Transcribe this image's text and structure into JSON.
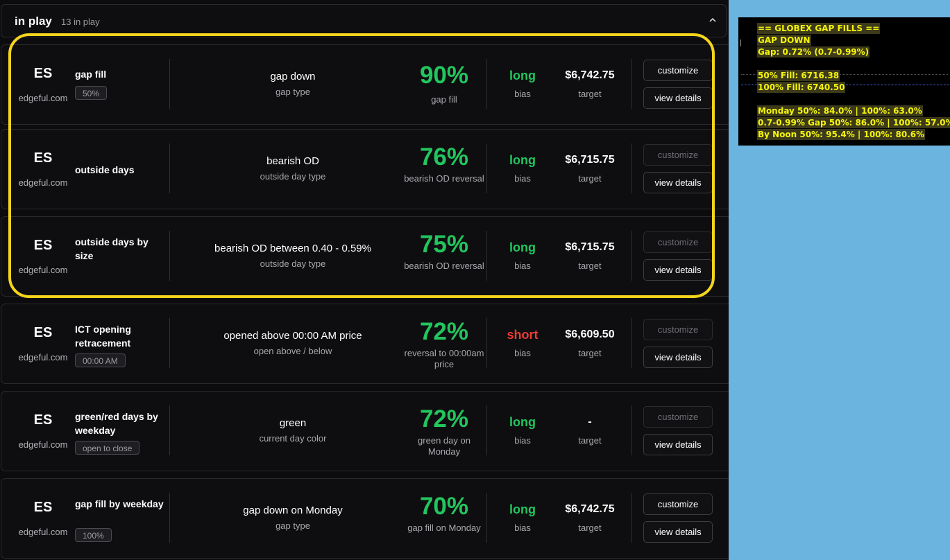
{
  "header": {
    "title": "in play",
    "count": "13 in play",
    "collapse_icon": "chevron-up-icon"
  },
  "cards": [
    {
      "symbol": "ES",
      "site": "edgeful.com",
      "name": "gap fill",
      "badge": "50%",
      "condition": "gap down",
      "condition_label": "gap type",
      "probability": "90%",
      "probability_label": "gap fill",
      "bias": "long",
      "bias_label": "bias",
      "target": "$6,742.75",
      "target_label": "target",
      "customize_label": "customize",
      "customize_enabled": true,
      "details_label": "view details"
    },
    {
      "symbol": "ES",
      "site": "edgeful.com",
      "name": "outside days",
      "badge": "",
      "condition": "bearish OD",
      "condition_label": "outside day type",
      "probability": "76%",
      "probability_label": "bearish OD reversal",
      "bias": "long",
      "bias_label": "bias",
      "target": "$6,715.75",
      "target_label": "target",
      "customize_label": "customize",
      "customize_enabled": false,
      "details_label": "view details"
    },
    {
      "symbol": "ES",
      "site": "edgeful.com",
      "name": "outside days by size",
      "badge": "",
      "condition": "bearish OD between 0.40 - 0.59%",
      "condition_label": "outside day type",
      "probability": "75%",
      "probability_label": "bearish OD reversal",
      "bias": "long",
      "bias_label": "bias",
      "target": "$6,715.75",
      "target_label": "target",
      "customize_label": "customize",
      "customize_enabled": false,
      "details_label": "view details"
    },
    {
      "symbol": "ES",
      "site": "edgeful.com",
      "name": "ICT opening retracement",
      "badge": "00:00 AM",
      "condition": "opened above 00:00 AM price",
      "condition_label": "open above / below",
      "probability": "72%",
      "probability_label": "reversal to 00:00am price",
      "bias": "short",
      "bias_label": "bias",
      "target": "$6,609.50",
      "target_label": "target",
      "customize_label": "customize",
      "customize_enabled": false,
      "details_label": "view details"
    },
    {
      "symbol": "ES",
      "site": "edgeful.com",
      "name": "green/red days by weekday",
      "badge": "open to close",
      "condition": "green",
      "condition_label": "current day color",
      "probability": "72%",
      "probability_label": "green day on Monday",
      "bias": "long",
      "bias_label": "bias",
      "target": "-",
      "target_label": "target",
      "customize_label": "customize",
      "customize_enabled": false,
      "details_label": "view details"
    },
    {
      "symbol": "ES",
      "site": "edgeful.com",
      "name": "gap fill by weekday",
      "badge": "100%",
      "condition": "gap down on Monday",
      "condition_label": "gap type",
      "probability": "70%",
      "probability_label": "gap fill on Monday",
      "bias": "long",
      "bias_label": "bias",
      "target": "$6,742.75",
      "target_label": "target",
      "customize_label": "customize",
      "customize_enabled": true,
      "details_label": "view details"
    }
  ],
  "indicator": {
    "lines": [
      "== GLOBEX GAP FILLS ==",
      "GAP DOWN",
      "Gap: 0.72% (0.7-0.99%)",
      "50% Fill: 6716.38",
      "100% Fill: 6740.50",
      "Monday 50%: 84.0% | 100%: 63.0%",
      "0.7-0.99% Gap 50%: 86.0% | 100%: 57.0%",
      "By Noon 50%: 95.4% | 100%: 80.6%"
    ]
  },
  "colors": {
    "accent_green": "#22c55e",
    "short_red": "#ef3b32",
    "highlight_yellow": "#f5d41c",
    "indicator_text": "#f5f50a",
    "desktop_blue": "#6cb4e0"
  }
}
